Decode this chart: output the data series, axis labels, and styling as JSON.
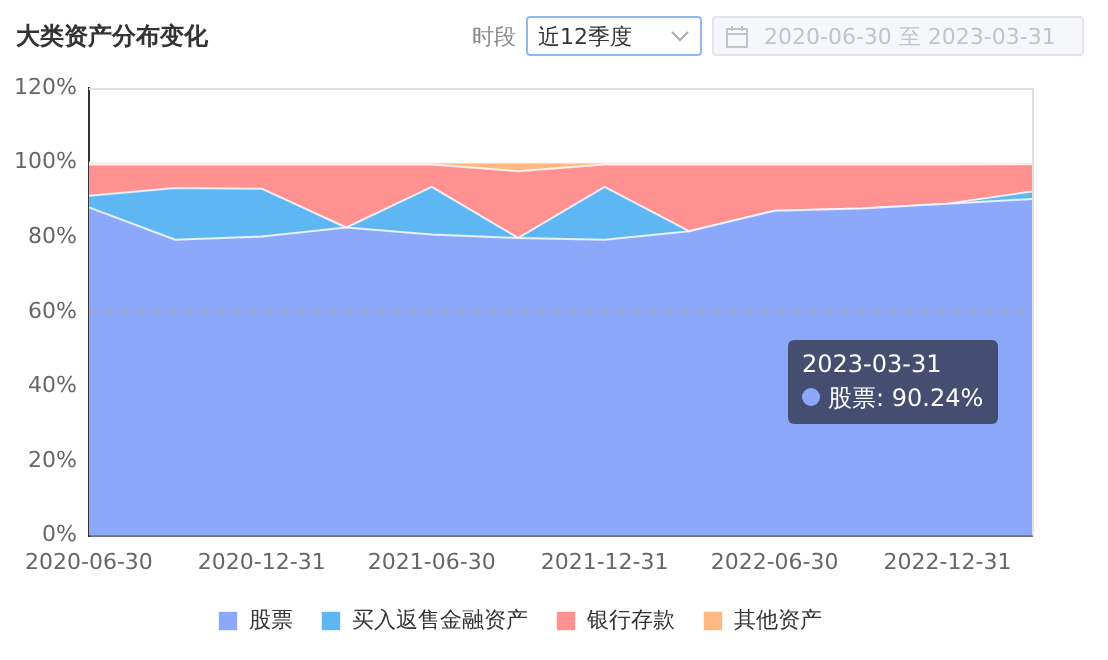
{
  "chart_data": {
    "type": "area",
    "title": "大类资产分布变化",
    "stacked": true,
    "x": [
      "2020-06-30",
      "2020-09-30",
      "2020-12-31",
      "2021-03-31",
      "2021-06-30",
      "2021-09-30",
      "2021-12-31",
      "2022-03-31",
      "2022-06-30",
      "2022-09-30",
      "2022-12-31",
      "2023-03-31"
    ],
    "series": [
      {
        "name": "股票",
        "color": "#8ca8fa",
        "values": [
          88.0,
          79.3,
          80.2,
          82.6,
          80.7,
          79.8,
          79.3,
          81.6,
          87.1,
          87.7,
          89.0,
          90.24
        ]
      },
      {
        "name": "买入返售金融资产",
        "color": "#5eb7f2",
        "values": [
          3.1,
          13.9,
          12.8,
          0,
          12.8,
          0,
          14.2,
          0,
          0,
          0,
          0,
          2.0
        ]
      },
      {
        "name": "银行存款",
        "color": "#ff9191",
        "values": [
          8.4,
          6.3,
          6.5,
          16.9,
          6.0,
          17.9,
          6.0,
          17.9,
          12.4,
          11.8,
          10.5,
          7.3
        ]
      },
      {
        "name": "其他资产",
        "color": "#ffb980",
        "values": [
          0.5,
          0.5,
          0.5,
          0.5,
          0.5,
          2.3,
          0.5,
          0.5,
          0.5,
          0.5,
          0.5,
          0.5
        ]
      }
    ],
    "xlim": [
      "2020-06-30",
      "2023-03-31"
    ],
    "xticks": [
      "2020-06-30",
      "2020-12-31",
      "2021-06-30",
      "2021-12-31",
      "2022-06-30",
      "2022-12-31"
    ],
    "ylim": [
      0,
      120
    ],
    "yticks": [
      {
        "value": 0,
        "label": "0%"
      },
      {
        "value": 20,
        "label": "20%"
      },
      {
        "value": 40,
        "label": "40%"
      },
      {
        "value": 60,
        "label": "60%"
      },
      {
        "value": 80,
        "label": "80%"
      },
      {
        "value": 100,
        "label": "100%"
      },
      {
        "value": 120,
        "label": "120%"
      }
    ],
    "ref_lines": [
      {
        "axis": "y",
        "value": 60,
        "color": "#aaaaaa",
        "line_style": "dashed"
      }
    ],
    "grid": false,
    "legend": "bottom",
    "marker": "none",
    "annotations": [
      "时段",
      "近12季度",
      "2020-06-30 至 2023-03-31",
      "2023-03-31\n股票: 90.24%"
    ]
  }
}
